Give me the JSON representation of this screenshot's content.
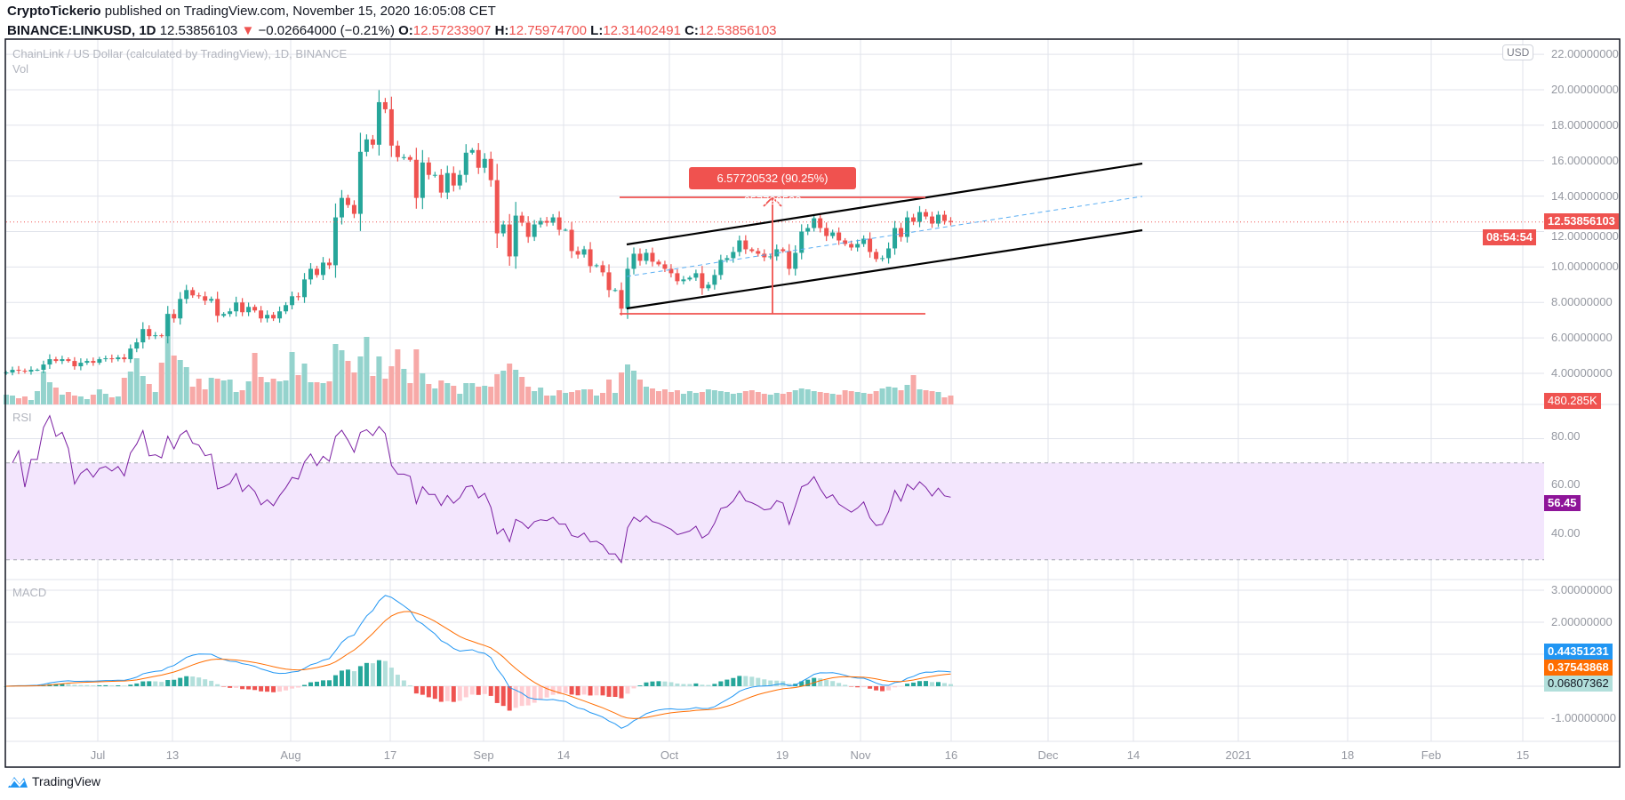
{
  "header": {
    "author": "CryptoTickerio",
    "published": "published on TradingView.com, November 15, 2020 16:05:08 CET",
    "symbol": "BINANCE:LINKUSD, 1D",
    "last": "12.53856103",
    "change": "−0.02664000 (−0.21%)",
    "o_label": "O:",
    "o": "12.57233907",
    "h_label": "H:",
    "h": "12.75974700",
    "l_label": "L:",
    "l": "12.31402491",
    "c_label": "C:",
    "c": "12.53856103"
  },
  "legend": {
    "title": "ChainLink / US Dollar (calculated by TradingView), 1D, BINANCE",
    "vol": "Vol",
    "rsi": "RSI",
    "macd": "MACD"
  },
  "currency_badge": "USD",
  "price_axis": [
    "22.00000000",
    "20.00000000",
    "18.00000000",
    "16.00000000",
    "14.00000000",
    "12.00000000",
    "10.00000000",
    "8.00000000",
    "6.00000000",
    "4.00000000"
  ],
  "rsi_axis": [
    "80.00",
    "60.00",
    "40.00"
  ],
  "macd_axis": [
    "3.00000000",
    "2.00000000",
    "-1.00000000"
  ],
  "tags": {
    "price": "12.53856103",
    "countdown": "08:54:54",
    "volume": "480.285K",
    "rsi": "56.45",
    "macd": "0.44351231",
    "signal": "0.37543868",
    "histogram": "0.06807362"
  },
  "measure_label": "6.57720532 (90.25%) 657720532",
  "time_axis": [
    "Jul",
    "13",
    "Aug",
    "17",
    "Sep",
    "14",
    "Oct",
    "19",
    "Nov",
    "16",
    "Dec",
    "14",
    "2021",
    "18",
    "Feb",
    "15"
  ],
  "footer": "TradingView",
  "colors": {
    "up": "#26a69a",
    "down": "#ef5350",
    "up_vol": "#94d3cd",
    "down_vol": "#f7a9a7",
    "rsi": "#7b1fa2",
    "rsi_band": "#f3e6fd",
    "macd": "#2196f3",
    "signal": "#ff6d00"
  },
  "chart_data": {
    "type": "candlestick",
    "title": "ChainLink / US Dollar, 1D, BINANCE",
    "ylim": [
      3,
      22.5
    ],
    "rsi_period": 14,
    "macd_params": [
      12,
      26,
      9
    ],
    "close": [
      4.05,
      4.2,
      4.15,
      4.1,
      4.2,
      4.2,
      4.5,
      4.8,
      4.7,
      4.8,
      4.7,
      4.4,
      4.6,
      4.7,
      4.6,
      4.8,
      4.85,
      4.8,
      4.9,
      4.8,
      5.4,
      5.75,
      6.5,
      6.1,
      6.15,
      6.1,
      7.35,
      7.1,
      8.2,
      8.7,
      8.4,
      8.35,
      8.1,
      8.2,
      7.25,
      7.35,
      7.5,
      8.0,
      7.45,
      7.75,
      7.55,
      7.1,
      7.3,
      7.1,
      7.5,
      7.85,
      8.35,
      8.3,
      9.3,
      9.9,
      9.55,
      10.25,
      10.1,
      12.8,
      13.9,
      13.5,
      13.0,
      16.5,
      17.2,
      16.9,
      19.3,
      18.9,
      16.85,
      16.2,
      16.2,
      16.05,
      13.9,
      15.9,
      15.2,
      15.2,
      14.2,
      15.3,
      14.6,
      15.2,
      16.45,
      16.6,
      15.6,
      16.1,
      14.9,
      11.9,
      12.4,
      10.6,
      12.9,
      12.5,
      11.7,
      12.4,
      12.6,
      12.5,
      12.8,
      12.1,
      12.1,
      10.9,
      10.7,
      11.0,
      10.05,
      10.1,
      9.7,
      8.7,
      8.7,
      7.65,
      9.9,
      10.75,
      10.35,
      10.8,
      10.3,
      10.15,
      9.9,
      9.65,
      9.2,
      9.3,
      9.4,
      9.65,
      8.8,
      9.0,
      9.55,
      10.4,
      10.5,
      10.85,
      11.5,
      11.0,
      10.9,
      10.75,
      10.55,
      10.6,
      11.0,
      10.9,
      9.9,
      10.8,
      12.0,
      12.2,
      12.75,
      12.2,
      11.75,
      11.95,
      11.5,
      11.3,
      11.1,
      11.3,
      11.6,
      10.85,
      10.45,
      10.5,
      11.05,
      12.2,
      11.7,
      12.8,
      12.55,
      13.1,
      12.85,
      12.45,
      12.95,
      12.6,
      12.54
    ],
    "volume_relative": [
      11,
      10,
      7,
      9,
      5,
      15,
      37,
      25,
      19,
      11,
      14,
      10,
      9,
      6,
      11,
      17,
      12,
      8,
      9,
      30,
      37,
      52,
      32,
      23,
      14,
      47,
      102,
      55,
      50,
      42,
      20,
      29,
      17,
      30,
      29,
      27,
      28,
      14,
      16,
      26,
      58,
      31,
      25,
      29,
      26,
      27,
      59,
      33,
      46,
      25,
      25,
      24,
      26,
      68,
      61,
      49,
      36,
      54,
      76,
      32,
      54,
      29,
      43,
      62,
      40,
      24,
      62,
      35,
      23,
      18,
      27,
      24,
      21,
      12,
      24,
      24,
      20,
      21,
      20,
      34,
      38,
      46,
      39,
      31,
      20,
      15,
      19,
      10,
      10,
      16,
      13,
      14,
      16,
      17,
      17,
      10,
      13,
      28,
      13,
      36,
      45,
      38,
      28,
      20,
      18,
      15,
      17,
      14,
      16,
      12,
      15,
      13,
      14,
      17,
      16,
      15,
      14,
      12,
      13,
      15,
      16,
      14,
      12,
      11,
      13,
      12,
      14,
      16,
      18,
      17,
      15,
      14,
      13,
      12,
      11,
      16,
      15,
      14,
      13,
      12,
      15,
      18,
      20,
      19,
      16,
      22,
      33,
      17,
      16,
      15,
      14,
      8
    ],
    "annotations": [
      "parallel channel",
      "price range 6.57720532 (90.25%)"
    ]
  }
}
